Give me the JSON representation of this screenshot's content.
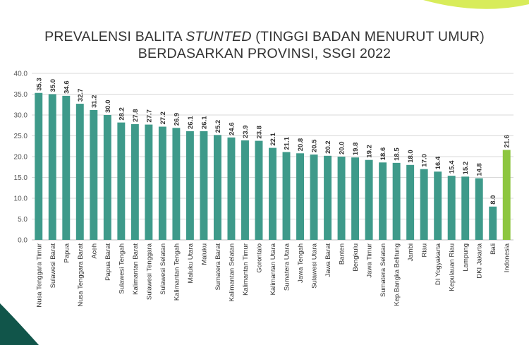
{
  "title": {
    "line1_before": "PREVALENSI BALITA ",
    "line1_italic": "STUNTED",
    "line1_after": " (TINGGI BADAN MENURUT UMUR)",
    "line2": "BERDASARKAN PROVINSI, SSGI 2022"
  },
  "colors": {
    "bar": "#3e9a8a",
    "highlight": "#8dc63f",
    "deco_green": "#d8ec5a",
    "deco_teal": "#11554a"
  },
  "chart_data": {
    "type": "bar",
    "title": "PREVALENSI BALITA STUNTED (TINGGI BADAN MENURUT UMUR) BERDASARKAN PROVINSI, SSGI 2022",
    "xlabel": "",
    "ylabel": "",
    "ylim": [
      0,
      40
    ],
    "yticks": [
      "0.0",
      "5.0",
      "10.0",
      "15.0",
      "20.0",
      "25.0",
      "30.0",
      "35.0",
      "40.0"
    ],
    "grid": true,
    "legend": "none",
    "highlight_category": "Indonesia",
    "categories": [
      "Nusa Tenggara Timur",
      "Sulawesi Barat",
      "Papua",
      "Nusa Tenggara Barat",
      "Aceh",
      "Papua Barat",
      "Sulawesi Tengah",
      "Kalimantan Barat",
      "Sulawesi Tenggara",
      "Sulawesi Selatan",
      "Kalimantan Tengah",
      "Maluku Utara",
      "Maluku",
      "Sumatera Barat",
      "Kalimantan Selatan",
      "Kalimantan Timur",
      "Gorontalo",
      "Kalimantan Utara",
      "Sumatera Utara",
      "Jawa Tengah",
      "Sulawesi Utara",
      "Jawa Barat",
      "Banten",
      "Bengkulu",
      "Jawa Timur",
      "Sumatera Selatan",
      "Kep.Bangka Belitung",
      "Jambi",
      "Riau",
      "DI Yogyakarta",
      "Kepulauan Riau",
      "Lampung",
      "DKI Jakarta",
      "Bali",
      "Indonesia"
    ],
    "values": [
      35.3,
      35.0,
      34.6,
      32.7,
      31.2,
      30.0,
      28.2,
      27.8,
      27.7,
      27.2,
      26.9,
      26.1,
      26.1,
      25.2,
      24.6,
      23.9,
      23.8,
      22.1,
      21.1,
      20.8,
      20.5,
      20.2,
      20.0,
      19.8,
      19.2,
      18.6,
      18.5,
      18.0,
      17.0,
      16.4,
      15.4,
      15.2,
      14.8,
      8.0,
      21.6
    ],
    "value_labels": [
      "35.3",
      "35.0",
      "34.6",
      "32.7",
      "31.2",
      "30.0",
      "28.2",
      "27.8",
      "27.7",
      "27.2",
      "26.9",
      "26.1",
      "26.1",
      "25.2",
      "24.6",
      "23.9",
      "23.8",
      "22.1",
      "21.1",
      "20.8",
      "20.5",
      "20.2",
      "20.0",
      "19.8",
      "19.2",
      "18.6",
      "18.5",
      "18.0",
      "17.0",
      "16.4",
      "15.4",
      "15.2",
      "14.8",
      "8.0",
      "21.6"
    ]
  }
}
